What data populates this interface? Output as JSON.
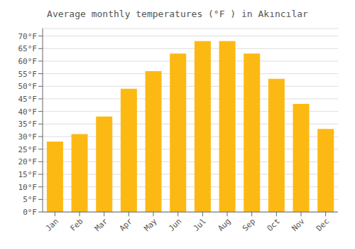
{
  "chart_data": {
    "type": "bar",
    "title": "Average monthly temperatures (°F ) in Akıncılar",
    "categories": [
      "Jan",
      "Feb",
      "Mar",
      "Apr",
      "May",
      "Jun",
      "Jul",
      "Aug",
      "Sep",
      "Oct",
      "Nov",
      "Dec"
    ],
    "values": [
      28,
      31,
      38,
      49,
      56,
      63,
      68,
      68,
      63,
      53,
      43,
      33
    ],
    "color": "#FDB913",
    "ylim": [
      0,
      73
    ],
    "yticks": [
      {
        "value": 0,
        "label": "0°F"
      },
      {
        "value": 5,
        "label": "5°F"
      },
      {
        "value": 10,
        "label": "10°F"
      },
      {
        "value": 15,
        "label": "15°F"
      },
      {
        "value": 20,
        "label": "20°F"
      },
      {
        "value": 25,
        "label": "25°F"
      },
      {
        "value": 30,
        "label": "30°F"
      },
      {
        "value": 35,
        "label": "35°F"
      },
      {
        "value": 40,
        "label": "40°F"
      },
      {
        "value": 45,
        "label": "45°F"
      },
      {
        "value": 50,
        "label": "50°F"
      },
      {
        "value": 55,
        "label": "55°F"
      },
      {
        "value": 60,
        "label": "60°F"
      },
      {
        "value": 65,
        "label": "65°F"
      },
      {
        "value": 70,
        "label": "70°F"
      }
    ],
    "grid": true
  }
}
